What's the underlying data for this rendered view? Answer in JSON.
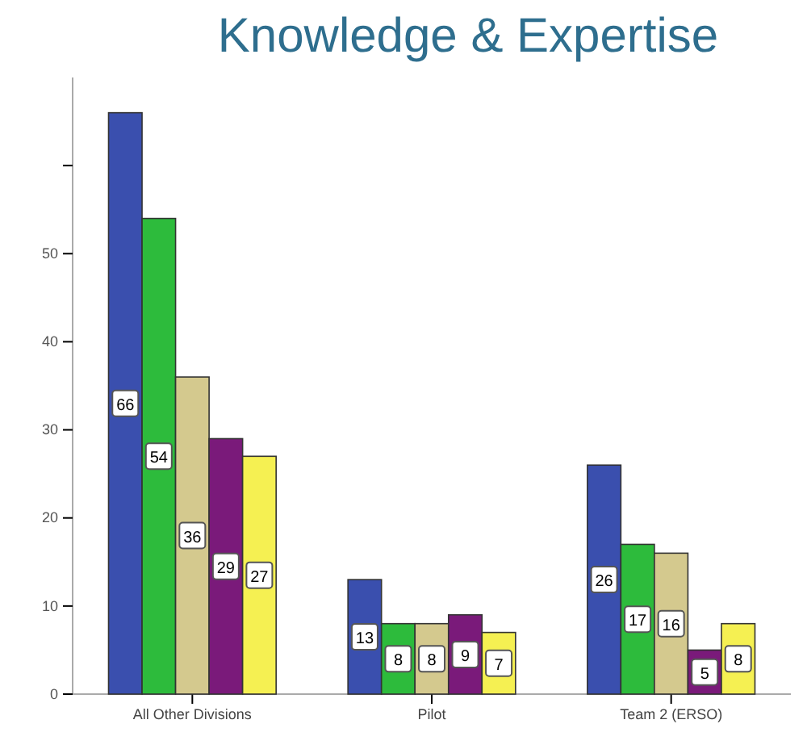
{
  "chart_data": {
    "type": "bar",
    "title": "Knowledge & Expertise",
    "categories": [
      "All Other Divisions",
      "Pilot",
      "Team 2 (ERSO)"
    ],
    "series": [
      {
        "color": "#3a4fae",
        "values": [
          66,
          13,
          26
        ]
      },
      {
        "color": "#2dbb3c",
        "values": [
          54,
          8,
          17
        ]
      },
      {
        "color": "#d4c98e",
        "values": [
          36,
          8,
          16
        ]
      },
      {
        "color": "#7a1a7a",
        "values": [
          29,
          9,
          5
        ]
      },
      {
        "color": "#f5f052",
        "values": [
          27,
          7,
          8
        ]
      }
    ],
    "ylim": [
      0,
      70
    ],
    "yticks": [
      0,
      10,
      20,
      30,
      40,
      50,
      {
        "value": 60,
        "label": null
      }
    ],
    "data_labels": true,
    "grid": false,
    "legend": false
  }
}
